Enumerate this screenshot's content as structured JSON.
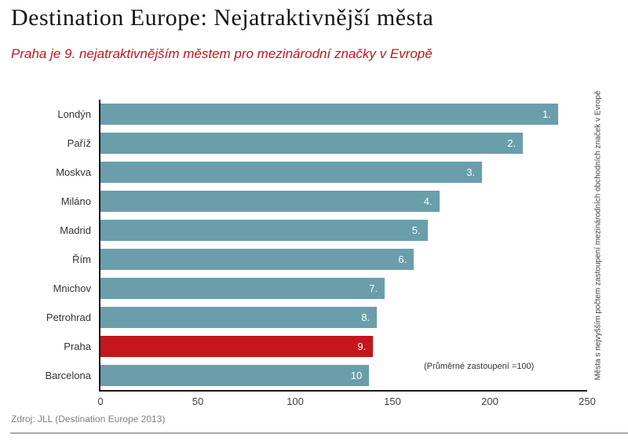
{
  "header": {
    "title": "Destination Europe: Nejatraktivnější města",
    "subtitle": "Praha je 9. nejatraktivnějším městem pro mezinárodní značky v Evropě"
  },
  "chart_data": {
    "type": "bar",
    "orientation": "horizontal",
    "title": "Destination Europe: Nejatraktivnější města",
    "categories": [
      "Londýn",
      "Paříž",
      "Moskva",
      "Miláno",
      "Madrid",
      "Řím",
      "Mnichov",
      "Petrohrad",
      "Praha",
      "Barcelona"
    ],
    "values": [
      235,
      217,
      196,
      174,
      168,
      161,
      146,
      142,
      140,
      138
    ],
    "bar_labels": [
      "1.",
      "2.",
      "3.",
      "4.",
      "5.",
      "6.",
      "7.",
      "8.",
      "9.",
      "10"
    ],
    "highlight_category": "Praha",
    "highlight_index": 8,
    "bar_color": "#6A9EAB",
    "highlight_color": "#C4161C",
    "xlim": [
      0,
      250
    ],
    "x_ticks": [
      0,
      50,
      100,
      150,
      200,
      250
    ],
    "grid": false,
    "annotation": "(Průměrné zastoupení =100)",
    "right_axis_label": "Města s nejvyšším počtem zastoupení mezinárodních obchodních značek v Evropě"
  },
  "footer": {
    "source": "Zdroj: JLL (Destination Europe 2013)"
  }
}
